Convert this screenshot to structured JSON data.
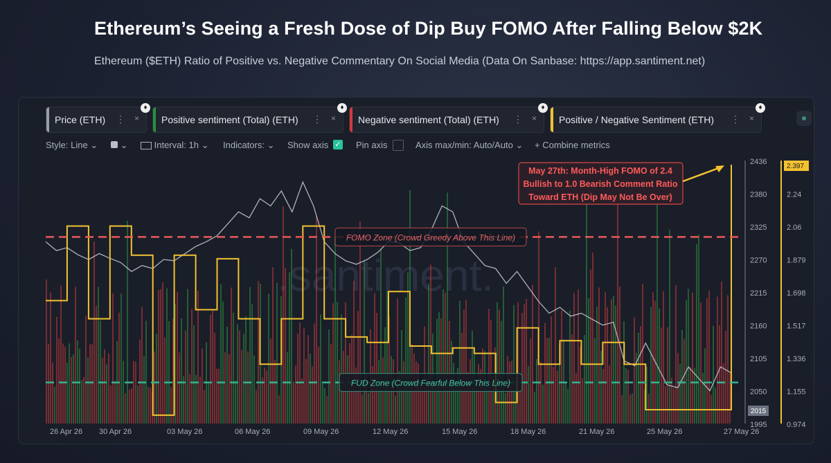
{
  "headline": "Ethereum’s Seeing a Fresh Dose of Dip Buy FOMO After Falling Below $2K",
  "subheadline": "Ethereum ($ETH) Ratio of Positive vs. Negative Commentary On Social Media (Data On Sanbase: https://app.santiment.net)",
  "metrics": [
    {
      "label": "Price (ETH)",
      "color": "#9aa0ab"
    },
    {
      "label": "Positive sentiment (Total) (ETH)",
      "color": "#2a8f3f"
    },
    {
      "label": "Negative sentiment (Total) (ETH)",
      "color": "#d23a3a"
    },
    {
      "label": "Positive / Negative Sentiment (ETH)",
      "color": "#f2c230"
    }
  ],
  "metric_menu_glyph": "⋮",
  "metric_close_glyph": "×",
  "metric_badge_glyph": "♦",
  "toolbar": {
    "style": "Style: Line",
    "style_caret": "⌄",
    "color_caret": "⌄",
    "interval": "Interval: 1h",
    "interval_caret": "⌄",
    "indicators": "Indicators:",
    "indicators_caret": "⌄",
    "show_axis": "Show axis",
    "show_axis_check": "✓",
    "pin_axis": "Pin axis",
    "axis_maxmin": "Axis max/min: Auto/Auto",
    "axis_caret": "⌄",
    "combine": "+  Combine metrics"
  },
  "watermark": ".santiment.",
  "chart_data": {
    "type": "line",
    "x_labels": [
      "26 Apr 26",
      "30 Apr 26",
      "03 May 26",
      "06 May 26",
      "09 May 26",
      "12 May 26",
      "15 May 26",
      "18 May 26",
      "21 May 26",
      "25 May 26",
      "27 May 26"
    ],
    "price_axis": {
      "ticks": [
        2436,
        2380,
        2325,
        2270,
        2215,
        2160,
        2105,
        2050,
        1995
      ],
      "current": "2015"
    },
    "ratio_axis": {
      "ticks": [
        "2.24",
        "2.06",
        "1.879",
        "1.698",
        "1.517",
        "1.336",
        "1.155",
        "0.974"
      ],
      "current": "2.397"
    },
    "series": [
      {
        "name": "Price (ETH)",
        "x": [
          0,
          0.5,
          1,
          1.5,
          2,
          2.5,
          3,
          3.5,
          4,
          4.5,
          5,
          5.5,
          6,
          6.5,
          7,
          7.5,
          8,
          8.5,
          9,
          9.5,
          10,
          10.5,
          11,
          11.5,
          12,
          12.5,
          13,
          13.5,
          14,
          14.5,
          15,
          15.5,
          16,
          16.5,
          17,
          17.5,
          18,
          18.5,
          19,
          19.5,
          20,
          20.5,
          21,
          21.5,
          22,
          22.5,
          23,
          23.5,
          24,
          24.5,
          25,
          25.5,
          26,
          26.5,
          27,
          27.5,
          28,
          28.5,
          29,
          29.5,
          30,
          30.5,
          31,
          31.5,
          32
        ],
        "values": [
          2300,
          2285,
          2290,
          2278,
          2270,
          2280,
          2272,
          2265,
          2250,
          2260,
          2255,
          2270,
          2268,
          2280,
          2292,
          2300,
          2310,
          2330,
          2350,
          2340,
          2372,
          2360,
          2385,
          2350,
          2400,
          2360,
          2300,
          2280,
          2268,
          2262,
          2270,
          2282,
          2300,
          2298,
          2285,
          2290,
          2320,
          2360,
          2350,
          2300,
          2280,
          2260,
          2255,
          2230,
          2250,
          2225,
          2200,
          2180,
          2190,
          2175,
          2180,
          2170,
          2160,
          2165,
          2100,
          2092,
          2130,
          2095,
          2060,
          2055,
          2090,
          2070,
          2050,
          2090,
          2080
        ]
      },
      {
        "name": "Positive / Negative Sentiment (ETH)",
        "x": [
          0,
          1,
          2,
          3,
          4,
          5,
          6,
          7,
          8,
          9,
          10,
          11,
          12,
          13,
          14,
          15,
          16,
          17,
          18,
          19,
          20,
          21,
          22,
          23,
          24,
          25,
          26,
          27,
          28,
          29,
          30,
          31,
          32
        ],
        "values": [
          1.65,
          2.06,
          1.55,
          2.06,
          1.9,
          1.02,
          1.9,
          1.6,
          1.88,
          1.55,
          1.3,
          1.55,
          2.06,
          1.55,
          1.45,
          1.42,
          1.7,
          1.4,
          1.36,
          1.39,
          1.36,
          1.09,
          1.5,
          1.3,
          1.43,
          1.3,
          1.42,
          1.3,
          1.05,
          1.05,
          1.05,
          1.05,
          2.397
        ]
      }
    ],
    "reference_lines": [
      {
        "label": "FOMO Zone (Crowd Greedy Above This Line)",
        "value": 2.0
      },
      {
        "label": "FUD Zone (Crowd Fearful Below This Line)",
        "value": 1.2
      }
    ],
    "annotation": "May 27th: Month-High FOMO of 2.4 Bullish to 1.0 Bearish Comment Ratio Toward ETH (Dip May Not Be Over)",
    "colors": {
      "price": "#c9ccd3",
      "ratio": "#f2c230",
      "positive": "#2f8f3f",
      "negative": "#c63a3a",
      "fomo": "#e85a5a",
      "fud": "#37b38e"
    }
  }
}
